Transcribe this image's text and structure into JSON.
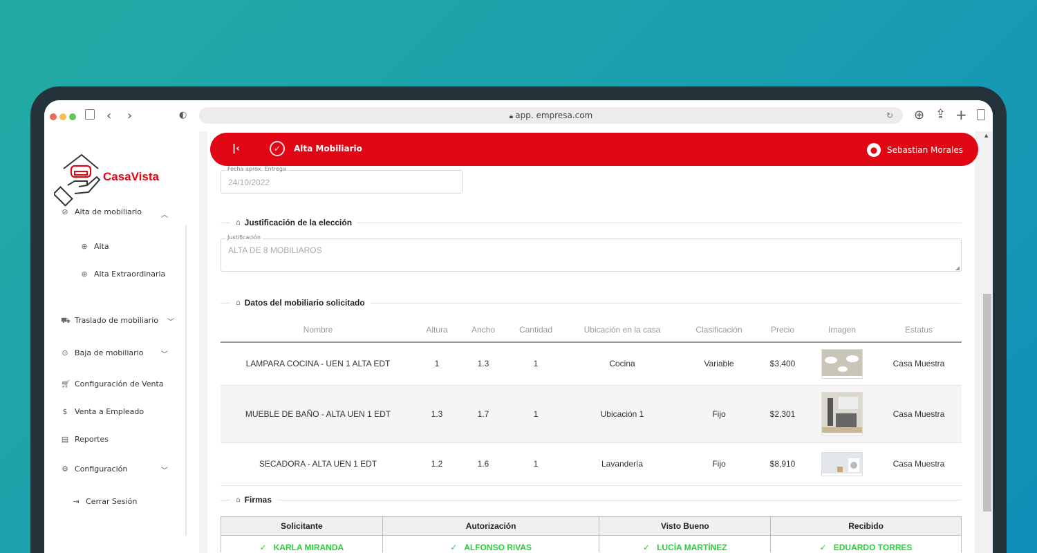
{
  "browser": {
    "url": "app. empresa.com"
  },
  "brand": {
    "name": "CasaVista",
    "color": "#e10613"
  },
  "sidebar": {
    "items": [
      {
        "label": "Alta de mobiliario",
        "icon": "badge-icon",
        "expanded": true
      },
      {
        "label": "Alta",
        "icon": "plus-circle-icon"
      },
      {
        "label": "Alta Extraordinaria",
        "icon": "plus-circle-icon"
      },
      {
        "label": "Traslado de mobiliario",
        "icon": "truck-icon"
      },
      {
        "label": "Baja de mobiliario",
        "icon": "down-circle-icon"
      },
      {
        "label": "Configuración de Venta",
        "icon": "cart-icon"
      },
      {
        "label": "Venta a Empleado",
        "icon": "dollar-icon"
      },
      {
        "label": "Reportes",
        "icon": "report-icon"
      },
      {
        "label": "Configuración",
        "icon": "gear-icon"
      },
      {
        "label": "Cerrar Sesión",
        "icon": "logout-icon"
      }
    ]
  },
  "header": {
    "title": "Alta Mobiliario",
    "user": "Sebastian Morales"
  },
  "form": {
    "fecha_label": "Fecha aprox. Entrega",
    "fecha_value": "24/10/2022",
    "just_section": "Justificación de la elección",
    "just_label": "Justificación",
    "just_value": "ALTA DE 8 MOBILIAROS",
    "datos_section": "Datos del mobiliario solicitado",
    "firmas_section": "Firmas"
  },
  "table": {
    "columns": [
      "Nombre",
      "Altura",
      "Ancho",
      "Cantidad",
      "Ubicación en la casa",
      "Clasificación",
      "Precio",
      "Imagen",
      "Estatus"
    ],
    "rows": [
      {
        "nombre": "LAMPARA COCINA - UEN 1 ALTA EDT",
        "altura": "1",
        "ancho": "1.3",
        "cantidad": "1",
        "ubicacion": "Cocina",
        "clasificacion": "Variable",
        "precio": "$3,400",
        "imagen": "lamp-image",
        "estatus": "Casa Muestra"
      },
      {
        "nombre": "MUEBLE DE BAÑO - ALTA UEN 1 EDT",
        "altura": "1.3",
        "ancho": "1.7",
        "cantidad": "1",
        "ubicacion": "Ubicación 1",
        "clasificacion": "Fijo",
        "precio": "$2,301",
        "imagen": "bathroom-cabinet-image",
        "estatus": "Casa Muestra"
      },
      {
        "nombre": "SECADORA - ALTA UEN 1 EDT",
        "altura": "1.2",
        "ancho": "1.6",
        "cantidad": "1",
        "ubicacion": "Lavandería",
        "clasificacion": "Fijo",
        "precio": "$8,910",
        "imagen": "dryer-image",
        "estatus": "Casa Muestra"
      }
    ]
  },
  "firmas": {
    "columns": [
      "Solicitante",
      "Autorización",
      "Visto Bueno",
      "Recibido"
    ],
    "names": [
      "KARLA MIRANDA",
      "ALFONSO RIVAS",
      "LUCÍA  MARTÍNEZ",
      "EDUARDO TORRES"
    ]
  }
}
